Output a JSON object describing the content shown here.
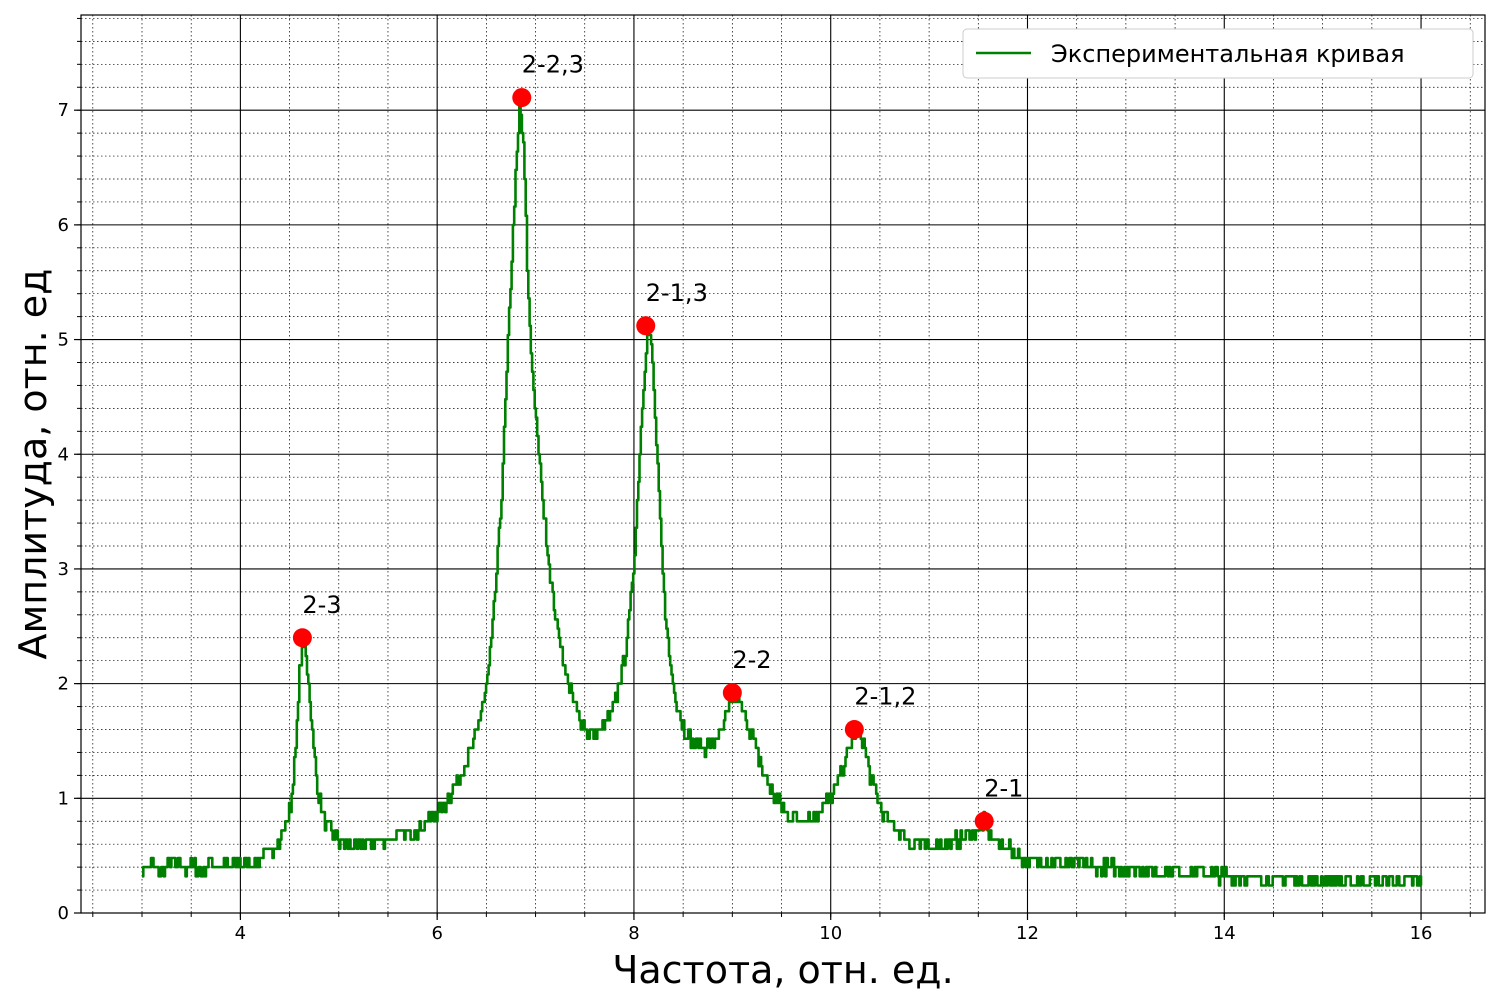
{
  "chart_data": {
    "type": "line",
    "xlabel": "Частота, отн. ед.",
    "ylabel": "Амплитуда, отн. ед",
    "xlim": [
      2.38,
      16.65
    ],
    "ylim": [
      0,
      7.83
    ],
    "xticks": [
      4,
      6,
      8,
      10,
      12,
      14,
      16
    ],
    "yticks": [
      0,
      1,
      2,
      3,
      4,
      5,
      6,
      7
    ],
    "grid": {
      "major": true,
      "minor": true
    },
    "legend_position": "top-right",
    "series": [
      {
        "name": "Экспериментальная кривая",
        "color": "#008000",
        "x": [
          3.0,
          3.1,
          3.2,
          3.3,
          3.4,
          3.5,
          3.6,
          3.7,
          3.8,
          3.9,
          4.0,
          4.1,
          4.2,
          4.3,
          4.4,
          4.5,
          4.55,
          4.6,
          4.65,
          4.7,
          4.75,
          4.8,
          4.85,
          4.9,
          5.0,
          5.1,
          5.2,
          5.3,
          5.4,
          5.5,
          5.6,
          5.7,
          5.8,
          5.9,
          6.0,
          6.1,
          6.2,
          6.3,
          6.4,
          6.5,
          6.55,
          6.6,
          6.65,
          6.7,
          6.75,
          6.8,
          6.84,
          6.88,
          6.92,
          6.96,
          7.0,
          7.05,
          7.1,
          7.2,
          7.3,
          7.4,
          7.5,
          7.6,
          7.7,
          7.8,
          7.9,
          7.95,
          8.0,
          8.05,
          8.1,
          8.14,
          8.18,
          8.22,
          8.26,
          8.3,
          8.35,
          8.4,
          8.5,
          8.6,
          8.7,
          8.8,
          8.9,
          8.95,
          9.0,
          9.05,
          9.1,
          9.2,
          9.3,
          9.4,
          9.5,
          9.6,
          9.7,
          9.8,
          9.9,
          10.0,
          10.1,
          10.2,
          10.25,
          10.3,
          10.35,
          10.4,
          10.5,
          10.6,
          10.7,
          10.8,
          10.9,
          11.0,
          11.1,
          11.2,
          11.3,
          11.4,
          11.5,
          11.55,
          11.6,
          11.7,
          11.8,
          11.9,
          12.0,
          12.5,
          13.0,
          13.5,
          14.0,
          14.5,
          15.0,
          15.5,
          16.0
        ],
        "y": [
          0.38,
          0.42,
          0.36,
          0.44,
          0.38,
          0.42,
          0.36,
          0.44,
          0.4,
          0.42,
          0.45,
          0.44,
          0.48,
          0.55,
          0.64,
          0.9,
          1.3,
          2.1,
          2.38,
          1.9,
          1.35,
          1.0,
          0.82,
          0.72,
          0.62,
          0.6,
          0.58,
          0.6,
          0.62,
          0.64,
          0.66,
          0.7,
          0.74,
          0.8,
          0.88,
          0.98,
          1.12,
          1.32,
          1.58,
          2.0,
          2.4,
          2.95,
          3.6,
          4.6,
          5.6,
          6.5,
          7.08,
          6.6,
          5.4,
          4.8,
          4.3,
          3.8,
          3.3,
          2.6,
          2.1,
          1.8,
          1.6,
          1.55,
          1.62,
          1.82,
          2.2,
          2.6,
          3.1,
          3.9,
          4.7,
          5.1,
          4.9,
          4.2,
          3.5,
          2.8,
          2.3,
          1.95,
          1.62,
          1.48,
          1.45,
          1.48,
          1.6,
          1.75,
          1.88,
          1.9,
          1.78,
          1.55,
          1.25,
          1.05,
          0.92,
          0.85,
          0.82,
          0.84,
          0.9,
          1.02,
          1.22,
          1.45,
          1.58,
          1.55,
          1.4,
          1.2,
          0.92,
          0.78,
          0.68,
          0.62,
          0.6,
          0.58,
          0.6,
          0.62,
          0.64,
          0.66,
          0.72,
          0.8,
          0.72,
          0.6,
          0.55,
          0.5,
          0.46,
          0.42,
          0.38,
          0.36,
          0.33,
          0.3,
          0.28,
          0.27,
          0.26
        ]
      }
    ],
    "annotations": [
      {
        "label": "2-3",
        "x": 4.63,
        "y": 2.4
      },
      {
        "label": "2-2,3",
        "x": 6.86,
        "y": 7.11
      },
      {
        "label": "2-1,3",
        "x": 8.12,
        "y": 5.12
      },
      {
        "label": "2-2",
        "x": 9.0,
        "y": 1.92
      },
      {
        "label": "2-1,2",
        "x": 10.24,
        "y": 1.6
      },
      {
        "label": "2-1",
        "x": 11.56,
        "y": 0.8
      }
    ],
    "marker_color": "#ff0000"
  }
}
